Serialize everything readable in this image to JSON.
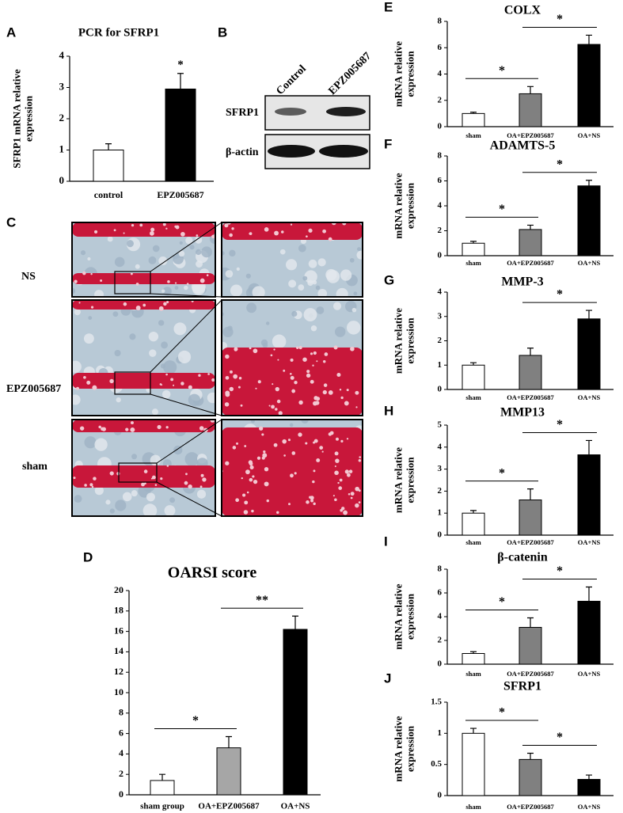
{
  "panel_b": {
    "letter": "B",
    "columns": [
      "Control",
      "EPZ005687"
    ],
    "rows": [
      "SFRP1",
      "β-actin"
    ]
  },
  "panel_c": {
    "letter": "C",
    "rows": [
      "NS",
      "EPZ005687",
      "sham"
    ]
  },
  "chart_data": [
    {
      "letter": "A",
      "type": "bar",
      "title": "PCR for SFRP1",
      "y_label": [
        "SFRP1 mRNA relative",
        "expression"
      ],
      "categories": [
        "control",
        "EPZ005687"
      ],
      "values": [
        1.0,
        2.95
      ],
      "errors": [
        0.2,
        0.5
      ],
      "colors": [
        "#ffffff",
        "#000000"
      ],
      "ylim": [
        0,
        4
      ],
      "yticks": [
        0,
        1,
        2,
        3,
        4
      ],
      "annotations": [
        {
          "label": "*",
          "between": [
            "EPZ005687"
          ]
        }
      ]
    },
    {
      "letter": "D",
      "type": "bar",
      "title": "OARSI score",
      "categories": [
        "sham group",
        "OA+EPZ005687",
        "OA+NS"
      ],
      "values": [
        1.4,
        4.6,
        16.2
      ],
      "errors": [
        0.6,
        1.1,
        1.3
      ],
      "colors": [
        "#ffffff",
        "#a6a6a6",
        "#000000"
      ],
      "ylim": [
        0,
        20
      ],
      "yticks": [
        0,
        2,
        4,
        6,
        8,
        10,
        12,
        14,
        16,
        18,
        20
      ],
      "annotations": [
        {
          "label": "*",
          "between": [
            "sham group",
            "OA+EPZ005687"
          ]
        },
        {
          "label": "**",
          "between": [
            "OA+EPZ005687",
            "OA+NS"
          ]
        }
      ]
    },
    {
      "letter": "E",
      "type": "bar",
      "title": "COLX",
      "y_label": [
        "mRNA relative",
        "expression"
      ],
      "categories": [
        "sham",
        "OA+EPZ005687",
        "OA+NS"
      ],
      "values": [
        1.0,
        2.5,
        6.25
      ],
      "errors": [
        0.1,
        0.55,
        0.7
      ],
      "colors": [
        "#ffffff",
        "#808080",
        "#000000"
      ],
      "ylim": [
        0,
        8
      ],
      "yticks": [
        0,
        2,
        4,
        6,
        8
      ],
      "annotations": [
        {
          "label": "*",
          "between": [
            "sham",
            "OA+EPZ005687"
          ]
        },
        {
          "label": "*",
          "between": [
            "OA+EPZ005687",
            "OA+NS"
          ]
        }
      ]
    },
    {
      "letter": "F",
      "type": "bar",
      "title": "ADAMTS-5",
      "y_label": [
        "mRNA relative",
        "expression"
      ],
      "categories": [
        "sham",
        "OA+EPZ005687",
        "OA+NS"
      ],
      "values": [
        1.0,
        2.1,
        5.6
      ],
      "errors": [
        0.15,
        0.35,
        0.45
      ],
      "colors": [
        "#ffffff",
        "#808080",
        "#000000"
      ],
      "ylim": [
        0,
        8
      ],
      "yticks": [
        0,
        2,
        4,
        6,
        8
      ],
      "annotations": [
        {
          "label": "*",
          "between": [
            "sham",
            "OA+EPZ005687"
          ]
        },
        {
          "label": "*",
          "between": [
            "OA+EPZ005687",
            "OA+NS"
          ]
        }
      ]
    },
    {
      "letter": "G",
      "type": "bar",
      "title": "MMP-3",
      "y_label": [
        "mRNA relative",
        "expression"
      ],
      "categories": [
        "sham",
        "OA+EPZ005687",
        "OA+NS"
      ],
      "values": [
        1.0,
        1.4,
        2.9
      ],
      "errors": [
        0.1,
        0.3,
        0.35
      ],
      "colors": [
        "#ffffff",
        "#808080",
        "#000000"
      ],
      "ylim": [
        0,
        4
      ],
      "yticks": [
        0,
        1,
        2,
        3,
        4
      ],
      "annotations": [
        {
          "label": "*",
          "between": [
            "OA+EPZ005687",
            "OA+NS"
          ]
        }
      ]
    },
    {
      "letter": "H",
      "type": "bar",
      "title": "MMP13",
      "y_label": [
        "mRNA relative",
        "expression"
      ],
      "categories": [
        "sham",
        "OA+EPZ005687",
        "OA+NS"
      ],
      "values": [
        1.0,
        1.6,
        3.65
      ],
      "errors": [
        0.12,
        0.5,
        0.65
      ],
      "colors": [
        "#ffffff",
        "#808080",
        "#000000"
      ],
      "ylim": [
        0,
        5
      ],
      "yticks": [
        0,
        1,
        2,
        3,
        4,
        5
      ],
      "annotations": [
        {
          "label": "*",
          "between": [
            "sham",
            "OA+EPZ005687"
          ]
        },
        {
          "label": "*",
          "between": [
            "OA+EPZ005687",
            "OA+NS"
          ]
        }
      ]
    },
    {
      "letter": "I",
      "type": "bar",
      "title": "β-catenin",
      "y_label": [
        "mRNA relative",
        "expression"
      ],
      "categories": [
        "sham",
        "OA+EPZ005687",
        "OA+NS"
      ],
      "values": [
        0.9,
        3.1,
        5.3
      ],
      "errors": [
        0.15,
        0.8,
        1.2
      ],
      "colors": [
        "#ffffff",
        "#808080",
        "#000000"
      ],
      "ylim": [
        0,
        8
      ],
      "yticks": [
        0,
        2,
        4,
        6,
        8
      ],
      "annotations": [
        {
          "label": "*",
          "between": [
            "sham",
            "OA+EPZ005687"
          ]
        },
        {
          "label": "*",
          "between": [
            "OA+EPZ005687",
            "OA+NS"
          ]
        }
      ]
    },
    {
      "letter": "J",
      "type": "bar",
      "title": "SFRP1",
      "y_label": [
        "mRNA relative",
        "expression"
      ],
      "categories": [
        "sham",
        "OA+EPZ005687",
        "OA+NS"
      ],
      "values": [
        1.0,
        0.58,
        0.26
      ],
      "errors": [
        0.08,
        0.1,
        0.07
      ],
      "colors": [
        "#ffffff",
        "#808080",
        "#000000"
      ],
      "ylim": [
        0,
        1.5
      ],
      "yticks": [
        0,
        0.5,
        1,
        1.5
      ],
      "annotations": [
        {
          "label": "*",
          "between": [
            "sham",
            "OA+EPZ005687"
          ]
        },
        {
          "label": "*",
          "between": [
            "OA+EPZ005687",
            "OA+NS"
          ]
        }
      ]
    }
  ]
}
